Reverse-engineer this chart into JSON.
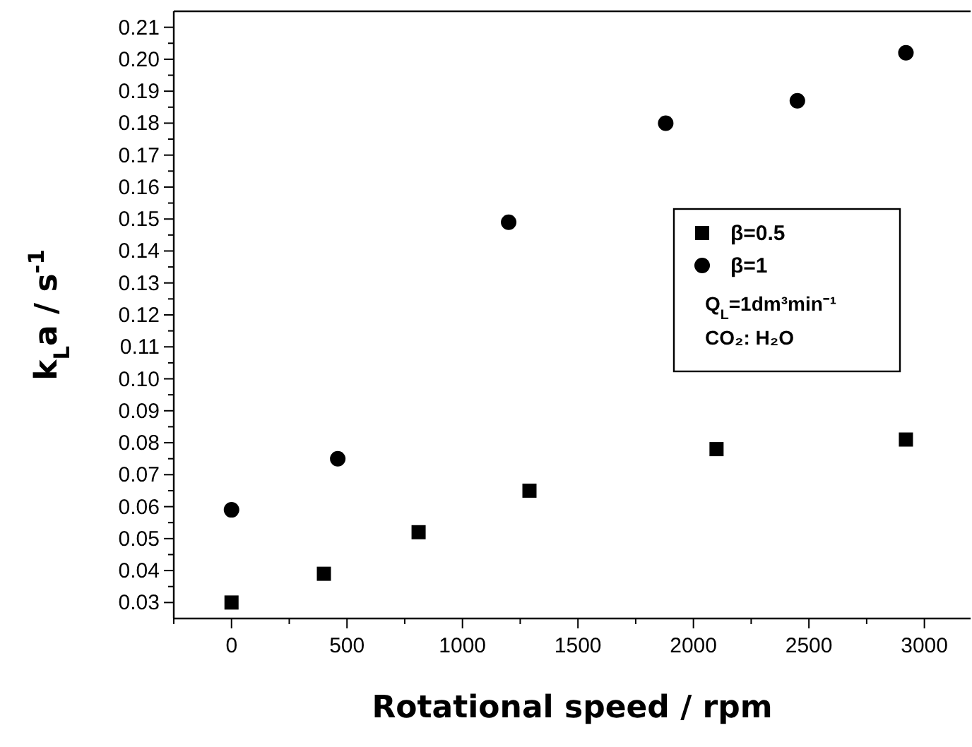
{
  "chart_data": {
    "type": "scatter",
    "xlabel": "Rotational speed / rpm",
    "ylabel": "k$_{L}$a / s$^{-1}$",
    "xlim": [
      -250,
      3200
    ],
    "ylim": [
      0.025,
      0.215
    ],
    "xticks": [
      {
        "value": -250,
        "label": null
      },
      0,
      {
        "value": 250,
        "label": null
      },
      500,
      {
        "value": 750,
        "label": null
      },
      1000,
      {
        "value": 1250,
        "label": null
      },
      1500,
      {
        "value": 1750,
        "label": null
      },
      2000,
      {
        "value": 2250,
        "label": null
      },
      2500,
      {
        "value": 2750,
        "label": null
      },
      3000
    ],
    "yticks": [
      {
        "value": 0.03,
        "label": "0.03"
      },
      {
        "value": 0.04,
        "label": "0.04"
      },
      {
        "value": 0.05,
        "label": "0.05"
      },
      {
        "value": 0.06,
        "label": "0.06"
      },
      {
        "value": 0.07,
        "label": "0.07"
      },
      {
        "value": 0.08,
        "label": "0.08"
      },
      {
        "value": 0.09,
        "label": "0.09"
      },
      {
        "value": 0.1,
        "label": "0.10"
      },
      {
        "value": 0.11,
        "label": "0.11"
      },
      {
        "value": 0.12,
        "label": "0.12"
      },
      {
        "value": 0.13,
        "label": "0.13"
      },
      {
        "value": 0.14,
        "label": "0.14"
      },
      {
        "value": 0.15,
        "label": "0.15"
      },
      {
        "value": 0.16,
        "label": "0.16"
      },
      {
        "value": 0.17,
        "label": "0.17"
      },
      {
        "value": 0.18,
        "label": "0.18"
      },
      {
        "value": 0.19,
        "label": "0.19"
      },
      {
        "value": 0.2,
        "label": "0.20"
      },
      {
        "value": 0.21,
        "label": "0.21"
      }
    ],
    "grid": false,
    "legend": "right",
    "series": [
      {
        "name": "β=0.5",
        "color": "#000000",
        "marker": "square",
        "x": [
          0,
          400,
          810,
          1290,
          2100,
          2920
        ],
        "values": [
          0.03,
          0.039,
          0.052,
          0.065,
          0.078,
          0.081
        ]
      },
      {
        "name": "β=1",
        "color": "#000000",
        "marker": "circle",
        "x": [
          0,
          460,
          1200,
          1880,
          2450,
          2920
        ],
        "values": [
          0.059,
          0.075,
          0.149,
          0.18,
          0.187,
          0.202
        ]
      }
    ],
    "annotations": [
      "Q$_{L}$=1dm³min⁻¹",
      "CO₂: H₂O"
    ]
  }
}
